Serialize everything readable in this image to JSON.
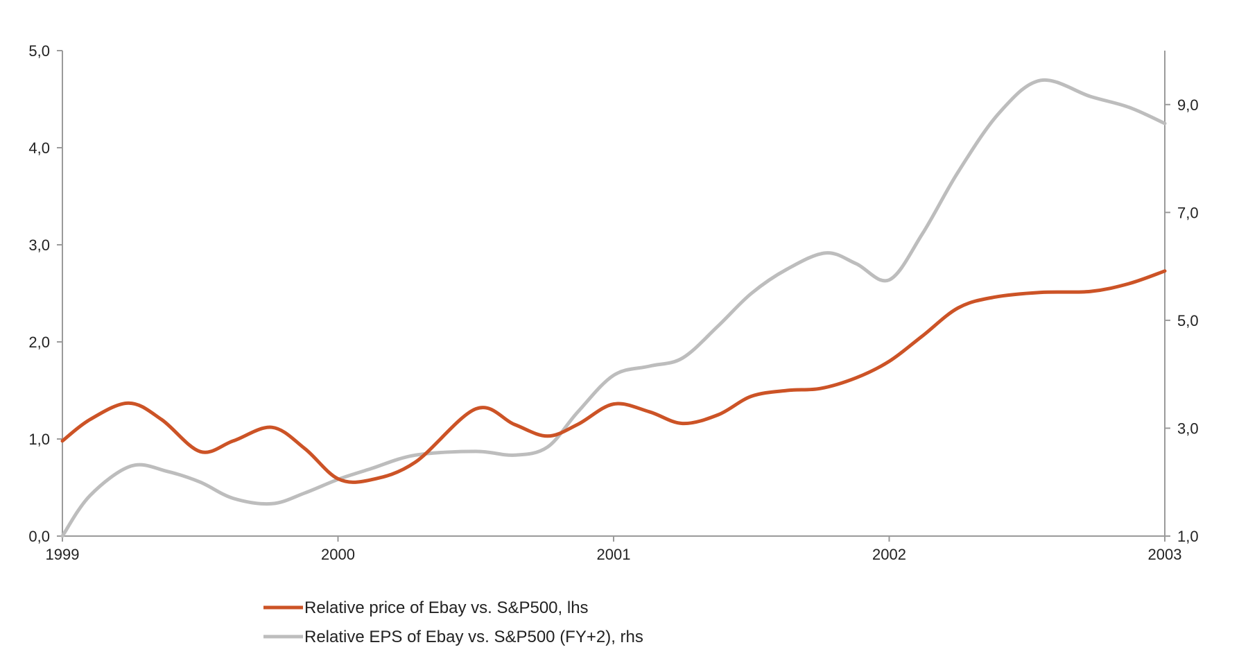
{
  "chart_data": {
    "type": "line",
    "x_range": [
      1999,
      2003
    ],
    "x_ticks": [
      "1999",
      "2000",
      "2001",
      "2002",
      "2003"
    ],
    "y_left": {
      "range": [
        0,
        5
      ],
      "ticks": [
        "0,0",
        "1,0",
        "2,0",
        "3,0",
        "4,0",
        "5,0"
      ]
    },
    "y_right": {
      "range": [
        1,
        10
      ],
      "ticks": [
        "1,0",
        "3,0",
        "5,0",
        "7,0",
        "9,0"
      ]
    },
    "grid": false,
    "legend_position": "bottom",
    "series": [
      {
        "name": "Relative price of Ebay vs. S&P500, lhs",
        "axis": "left",
        "color": "#CC5326",
        "points": [
          [
            1999.0,
            0.98
          ],
          [
            1999.1,
            1.2
          ],
          [
            1999.24,
            1.37
          ],
          [
            1999.36,
            1.2
          ],
          [
            1999.5,
            0.87
          ],
          [
            1999.62,
            0.98
          ],
          [
            1999.76,
            1.12
          ],
          [
            1999.88,
            0.9
          ],
          [
            2000.0,
            0.59
          ],
          [
            2000.12,
            0.58
          ],
          [
            2000.28,
            0.76
          ],
          [
            2000.5,
            1.31
          ],
          [
            2000.64,
            1.15
          ],
          [
            2000.76,
            1.03
          ],
          [
            2000.87,
            1.15
          ],
          [
            2001.0,
            1.36
          ],
          [
            2001.13,
            1.28
          ],
          [
            2001.25,
            1.16
          ],
          [
            2001.38,
            1.25
          ],
          [
            2001.5,
            1.44
          ],
          [
            2001.63,
            1.5
          ],
          [
            2001.75,
            1.52
          ],
          [
            2001.88,
            1.63
          ],
          [
            2002.0,
            1.8
          ],
          [
            2002.12,
            2.06
          ],
          [
            2002.25,
            2.35
          ],
          [
            2002.38,
            2.46
          ],
          [
            2002.55,
            2.51
          ],
          [
            2002.73,
            2.52
          ],
          [
            2002.87,
            2.6
          ],
          [
            2003.0,
            2.73
          ]
        ]
      },
      {
        "name": "Relative EPS of Ebay vs. S&P500 (FY+2), rhs",
        "axis": "right",
        "color": "#BDBDBD",
        "points": [
          [
            1999.0,
            1.0
          ],
          [
            1999.1,
            1.75
          ],
          [
            1999.25,
            2.3
          ],
          [
            1999.38,
            2.2
          ],
          [
            1999.5,
            2.0
          ],
          [
            1999.62,
            1.7
          ],
          [
            1999.76,
            1.6
          ],
          [
            1999.88,
            1.8
          ],
          [
            2000.0,
            2.05
          ],
          [
            2000.12,
            2.25
          ],
          [
            2000.28,
            2.5
          ],
          [
            2000.5,
            2.57
          ],
          [
            2000.64,
            2.5
          ],
          [
            2000.76,
            2.65
          ],
          [
            2000.87,
            3.3
          ],
          [
            2001.0,
            3.98
          ],
          [
            2001.13,
            4.15
          ],
          [
            2001.25,
            4.3
          ],
          [
            2001.38,
            4.9
          ],
          [
            2001.5,
            5.5
          ],
          [
            2001.63,
            5.95
          ],
          [
            2001.77,
            6.25
          ],
          [
            2001.88,
            6.05
          ],
          [
            2002.0,
            5.75
          ],
          [
            2002.12,
            6.6
          ],
          [
            2002.25,
            7.75
          ],
          [
            2002.4,
            8.85
          ],
          [
            2002.55,
            9.45
          ],
          [
            2002.73,
            9.15
          ],
          [
            2002.87,
            8.95
          ],
          [
            2003.0,
            8.65
          ]
        ]
      }
    ]
  }
}
